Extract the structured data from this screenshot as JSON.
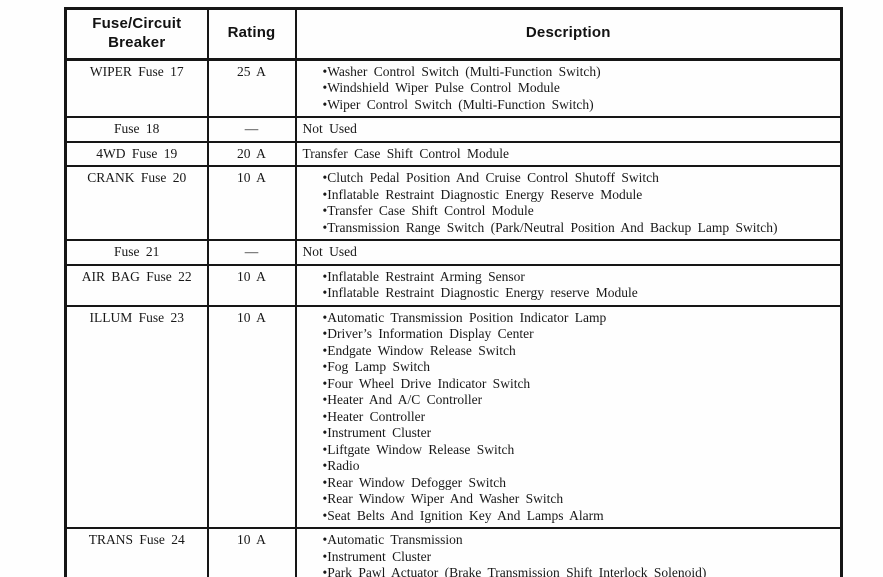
{
  "colors": {
    "text": "#181818",
    "border": "#161616",
    "background": "#fefefe"
  },
  "table": {
    "headers": {
      "fuse": "Fuse/Circuit Breaker",
      "rating": "Rating",
      "description": "Description"
    },
    "rows": [
      {
        "fuse": "WIPER Fuse 17",
        "rating": "25 A",
        "bulleted": true,
        "items": [
          "Washer Control Switch (Multi-Function Switch)",
          "Windshield Wiper Pulse Control Module",
          "Wiper Control Switch (Multi-Function Switch)"
        ]
      },
      {
        "fuse": "Fuse 18",
        "rating": "—",
        "bulleted": false,
        "items": [
          "Not Used"
        ]
      },
      {
        "fuse": "4WD Fuse 19",
        "rating": "20 A",
        "bulleted": false,
        "items": [
          "Transfer Case Shift Control Module"
        ]
      },
      {
        "fuse": "CRANK Fuse 20",
        "rating": "10 A",
        "bulleted": true,
        "items": [
          "Clutch Pedal Position And Cruise Control Shutoff Switch",
          "Inflatable Restraint Diagnostic Energy Reserve Module",
          "Transfer Case Shift Control Module",
          "Transmission Range Switch (Park/Neutral Position And Backup Lamp Switch)"
        ]
      },
      {
        "fuse": "Fuse 21",
        "rating": "—",
        "bulleted": false,
        "items": [
          "Not Used"
        ]
      },
      {
        "fuse": "AIR BAG Fuse 22",
        "rating": "10 A",
        "bulleted": true,
        "items": [
          "Inflatable Restraint Arming Sensor",
          "Inflatable Restraint Diagnostic Energy reserve Module"
        ]
      },
      {
        "fuse": "ILLUM Fuse 23",
        "rating": "10 A",
        "bulleted": true,
        "items": [
          "Automatic Transmission Position Indicator Lamp",
          "Driver’s Information Display Center",
          "Endgate Window Release Switch",
          "Fog Lamp Switch",
          "Four Wheel Drive Indicator Switch",
          "Heater And A/C Controller",
          "Heater Controller",
          "Instrument Cluster",
          "Liftgate Window Release Switch",
          "Radio",
          "Rear Window Defogger Switch",
          "Rear Window Wiper And Washer Switch",
          "Seat Belts And Ignition Key And Lamps Alarm"
        ]
      },
      {
        "fuse": "TRANS Fuse 24",
        "rating": "10 A",
        "bulleted": true,
        "items": [
          "Automatic Transmission",
          "Instrument Cluster",
          "Park Pawl Actuator (Brake Transmission Shift Interlock Solenoid)"
        ]
      }
    ]
  }
}
